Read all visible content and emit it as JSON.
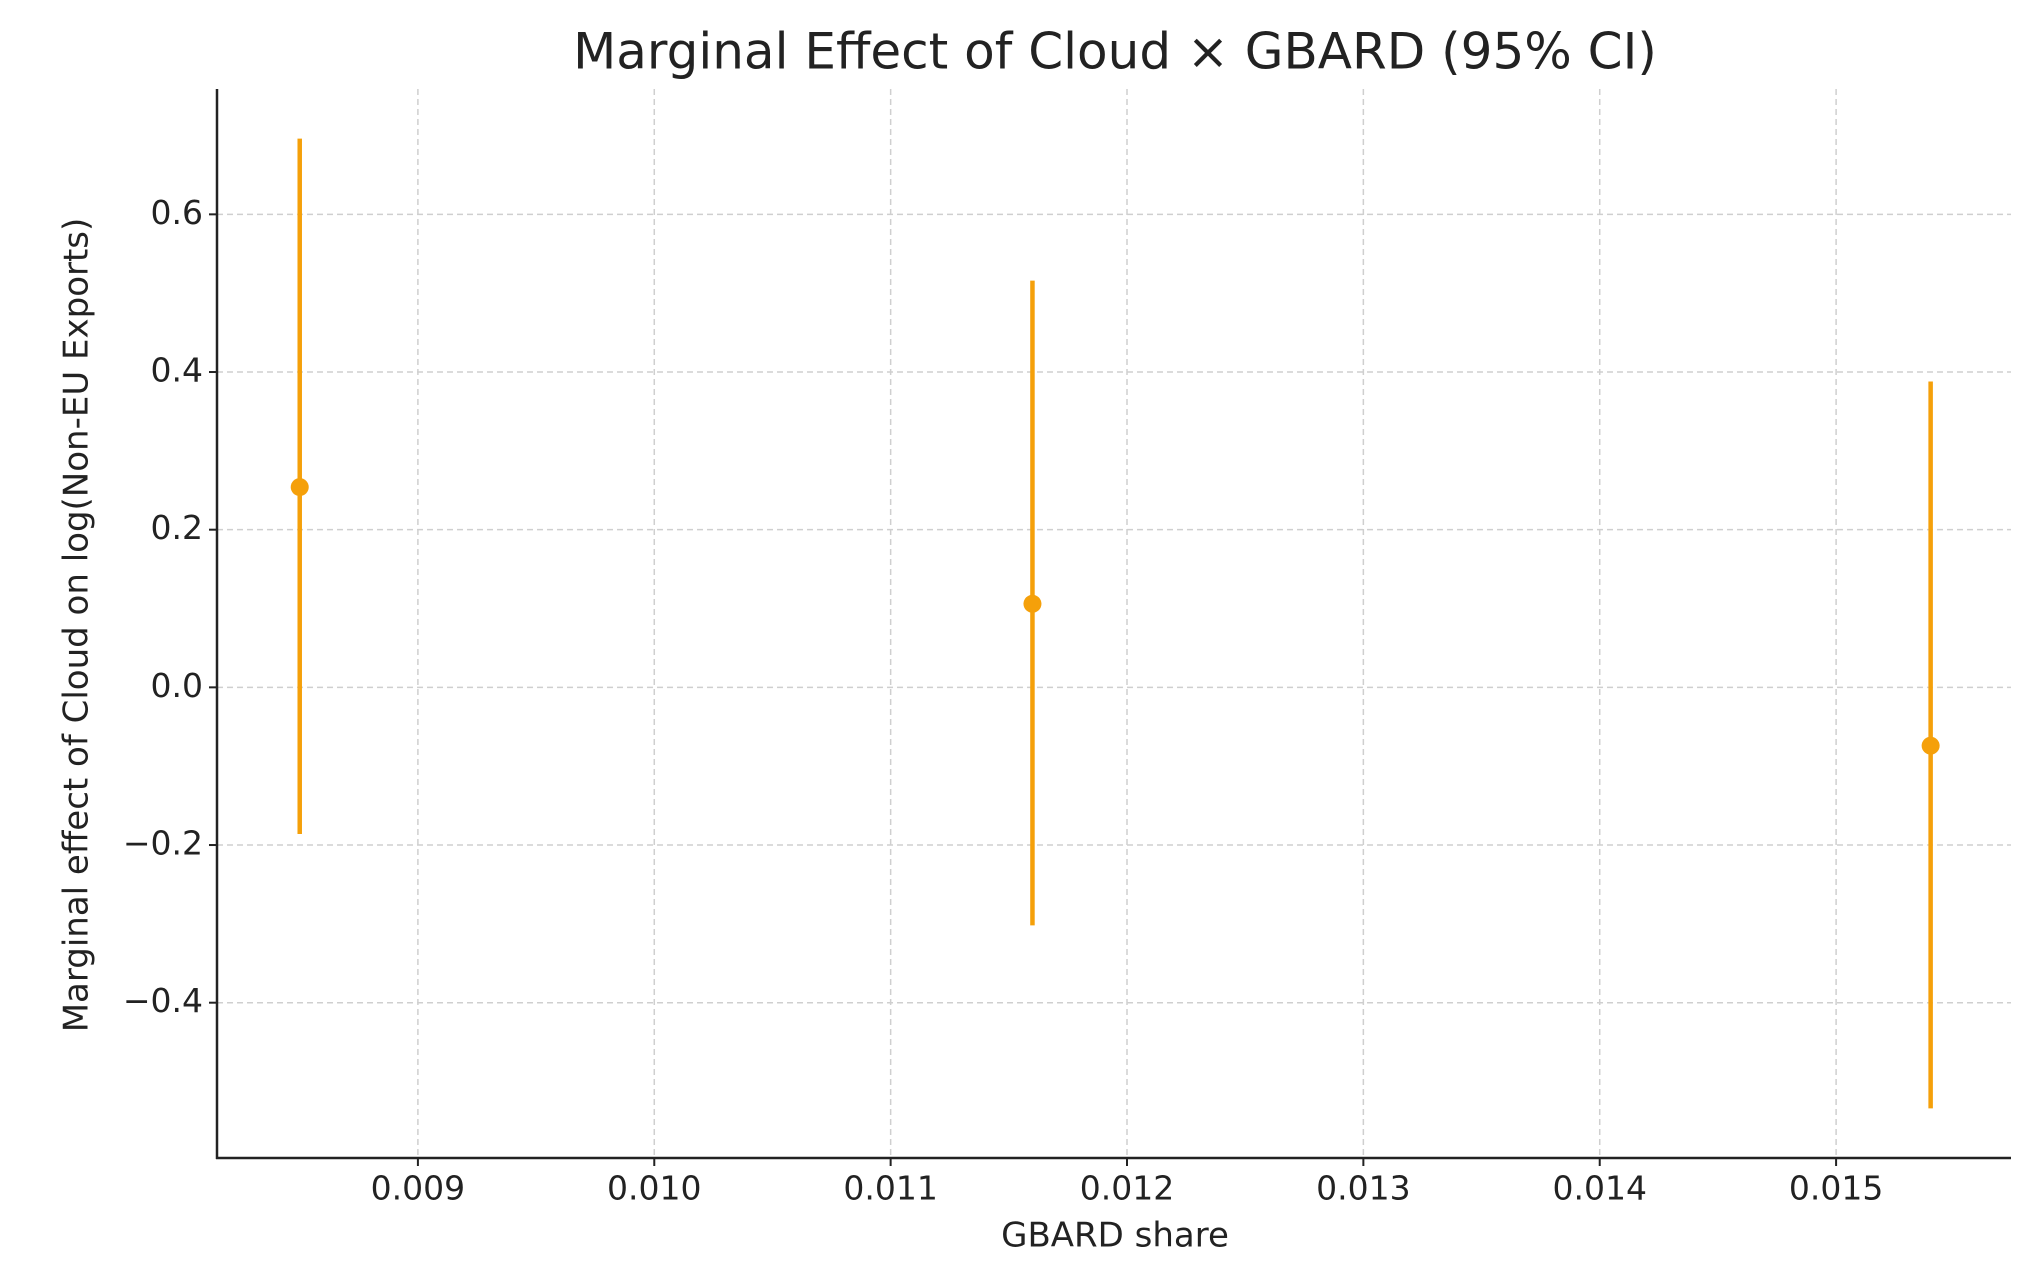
{
  "chart_data": {
    "type": "errorbar",
    "title": "Marginal Effect of Cloud × GBARD (95% CI)",
    "x_label": "GBARD share",
    "y_label": "Marginal effect of Cloud on log(Non-EU Exports)",
    "series": [
      {
        "color": "#f5a00a",
        "x": [
          0.0085,
          0.0116,
          0.0154
        ],
        "values": [
          0.254,
          0.106,
          -0.074
        ],
        "ci_lower": [
          -0.186,
          -0.302,
          -0.534
        ],
        "ci_upper": [
          0.696,
          0.516,
          0.388
        ]
      }
    ],
    "xlim": [
      0.00815,
      0.01574
    ],
    "ylim": [
      -0.597,
      0.759
    ],
    "xticks": [
      0.009,
      {
        "value": 0.01,
        "label": "0.010"
      },
      0.011,
      0.012,
      0.013,
      0.014,
      0.015
    ],
    "yticks": [
      {
        "value": -0.4,
        "label": "−0.4"
      },
      {
        "value": -0.2,
        "label": "−0.2"
      },
      {
        "value": 0,
        "label": "0.0"
      },
      0.2,
      0.4,
      0.6
    ],
    "grid": true
  }
}
